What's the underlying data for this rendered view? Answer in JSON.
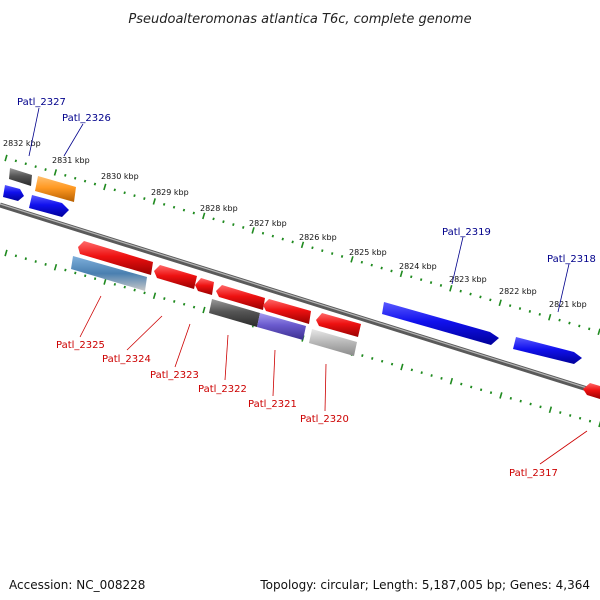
{
  "title": "Pseudoalteromonas atlantica T6c, complete genome",
  "footer": {
    "accession": "Accession: NC_008228",
    "topology": "Topology: circular; Length: 5,187,005 bp; Genes: 4,364"
  },
  "ticks": [
    "2832 kbp",
    "2831 kbp",
    "2830 kbp",
    "2829 kbp",
    "2828 kbp",
    "2827 kbp",
    "2826 kbp",
    "2825 kbp",
    "2824 kbp",
    "2823 kbp",
    "2822 kbp",
    "2821 kbp"
  ],
  "top_labels": [
    "Patl_2327",
    "Patl_2326",
    "Patl_2319",
    "Patl_2318"
  ],
  "bottom_labels": [
    "Patl_2325",
    "Patl_2324",
    "Patl_2323",
    "Patl_2322",
    "Patl_2321",
    "Patl_2320",
    "Patl_2317"
  ],
  "colors": {
    "red": "#ee1111",
    "blue": "#1111ee",
    "orange": "#ff9922",
    "gray": "#555555",
    "lightgray": "#bbbbbb",
    "purple": "#6a5acd",
    "steelblue": "#4a7fb0",
    "backbone": "#777777",
    "tick": "#1f8a1f",
    "label_top": "#00008b",
    "label_bottom": "#cc0000"
  }
}
